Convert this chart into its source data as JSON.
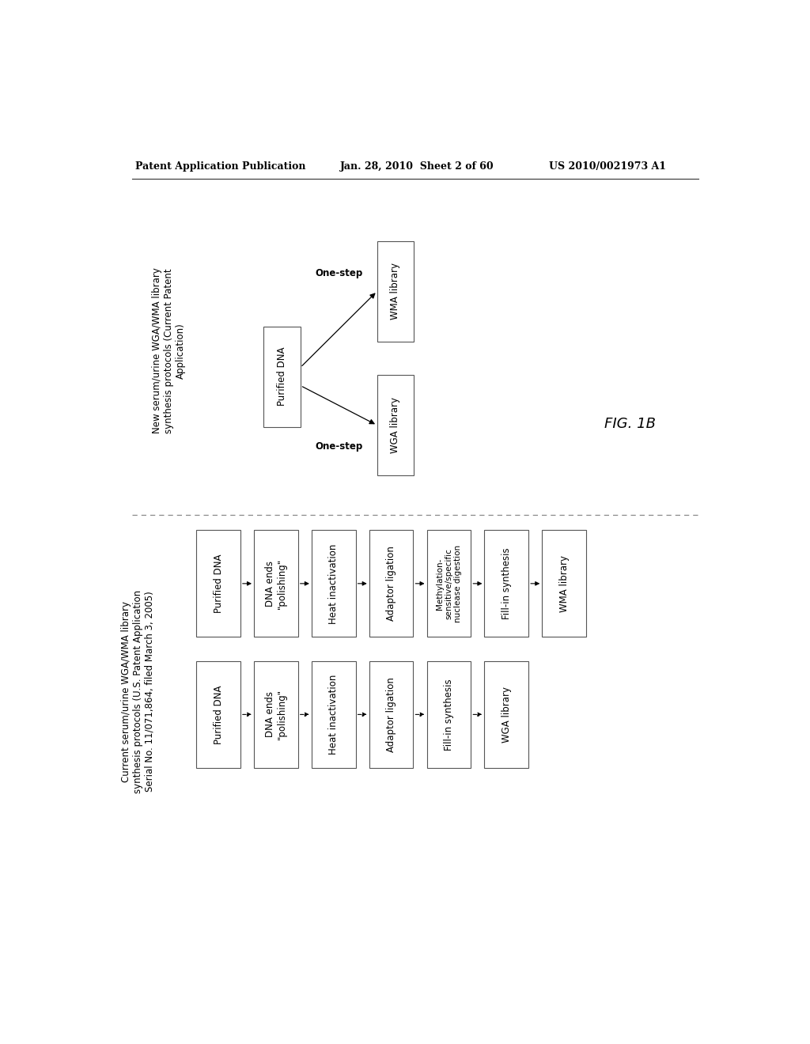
{
  "header_left": "Patent Application Publication",
  "header_mid": "Jan. 28, 2010  Sheet 2 of 60",
  "header_right": "US 2010/0021973 A1",
  "fig_label": "FIG. 1B",
  "section_left_title": "Current serum/urine WGA/WMA library\nsynthesis protocols (U.S. Patent Application\nSerial No. 11/071,864, filed March 3, 2005)",
  "section_right_title": "New serum/urine WGA/WMA library\nsynthesis protocols (Current Patent\nApplication)",
  "wma_chain": [
    "Purified DNA",
    "DNA ends\n\"polishing\"",
    "Heat inactivation",
    "Adaptor ligation",
    "Methylation-\nsensitive/specific\nnuclease digestion",
    "Fill-in synthesis",
    "WMA library"
  ],
  "wga_chain": [
    "Purified DNA",
    "DNA ends\n\"polishing\"",
    "Heat inactivation",
    "Adaptor ligation",
    "Fill-in synthesis",
    "WGA library"
  ],
  "right_center_box": "Purified DNA",
  "right_upper_label": "One-step",
  "right_upper_box": "WMA library",
  "right_lower_label": "One-step",
  "right_lower_box": "WGA library",
  "bg_color": "#ffffff",
  "box_edge_color": "#555555",
  "text_color": "#000000",
  "arrow_color": "#000000",
  "dashed_line_color": "#888888"
}
